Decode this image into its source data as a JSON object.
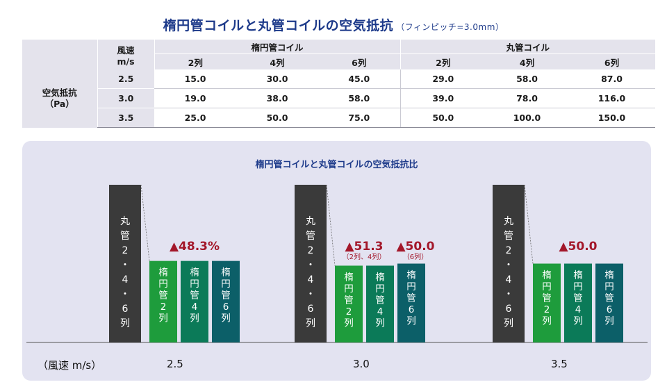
{
  "title": "楕円管コイルと丸管コイルの空気抵抗",
  "subtitle": "（フィンピッチ=3.0mm）",
  "table": {
    "speed_header_1": "風速",
    "speed_header_2": "m/s",
    "group_oval": "楕円管コイル",
    "group_round": "丸管コイル",
    "cols": [
      "2列",
      "4列",
      "6列",
      "2列",
      "4列",
      "6列"
    ],
    "row_label_1": "空気抵抗",
    "row_label_2": "（Pa）",
    "rows": [
      {
        "speed": "2.5",
        "values": [
          "15.0",
          "30.0",
          "45.0",
          "29.0",
          "58.0",
          "87.0"
        ]
      },
      {
        "speed": "3.0",
        "values": [
          "19.0",
          "38.0",
          "58.0",
          "39.0",
          "78.0",
          "116.0"
        ]
      },
      {
        "speed": "3.5",
        "values": [
          "25.0",
          "50.0",
          "75.0",
          "50.0",
          "100.0",
          "150.0"
        ]
      }
    ]
  },
  "chart_data": {
    "type": "bar",
    "title": "楕円管コイルと丸管コイルの空気抵抗比",
    "xlabel": "（風速 m/s）",
    "categories": [
      "2.5",
      "3.0",
      "3.5"
    ],
    "groups": [
      {
        "speed": "2.5",
        "round_ratio": 1.0,
        "oval_ratio": [
          0.517,
          0.517,
          0.517
        ],
        "annotations": [
          {
            "text": "▲48.3%",
            "note": ""
          }
        ]
      },
      {
        "speed": "3.0",
        "round_ratio": 1.0,
        "oval_ratio": [
          0.487,
          0.487,
          0.5
        ],
        "annotations": [
          {
            "text": "▲51.3",
            "note": "（2列、4列）"
          },
          {
            "text": "▲50.0",
            "note": "（6列）"
          }
        ]
      },
      {
        "speed": "3.5",
        "round_ratio": 1.0,
        "oval_ratio": [
          0.5,
          0.5,
          0.5
        ],
        "annotations": [
          {
            "text": "▲50.0",
            "note": ""
          }
        ]
      }
    ],
    "round_label": [
      "丸",
      "管",
      "2",
      "・",
      "4",
      "・",
      "6",
      "列"
    ],
    "oval_labels": [
      [
        "楕",
        "円",
        "管",
        "2",
        "列"
      ],
      [
        "楕",
        "円",
        "管",
        "4",
        "列"
      ],
      [
        "楕",
        "円",
        "管",
        "6",
        "列"
      ]
    ],
    "colors": {
      "round": "#3a3a3a",
      "oval_2": "#1e9c3c",
      "oval_4": "#0b7a58",
      "oval_6": "#0c5f68",
      "annotation": "#a3172a"
    }
  }
}
